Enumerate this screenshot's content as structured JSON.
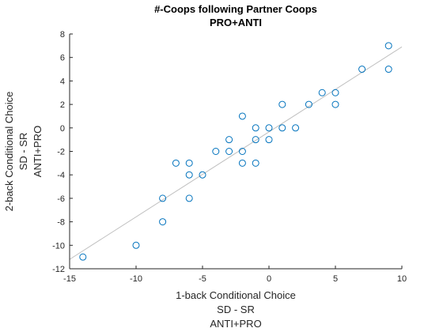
{
  "chart_data": {
    "type": "scatter",
    "title": [
      "#-Coops following Partner Coops",
      "PRO+ANTI"
    ],
    "xlabel": [
      "1-back Conditional Choice",
      "SD - SR",
      "ANTI+PRO"
    ],
    "ylabel": [
      "2-back Conditional Choice",
      "SD - SR",
      "ANTI+PRO"
    ],
    "xlim": [
      -15,
      10
    ],
    "ylim": [
      -12,
      8
    ],
    "xticks": [
      -15,
      -10,
      -5,
      0,
      5,
      10
    ],
    "yticks": [
      -12,
      -10,
      -8,
      -6,
      -4,
      -2,
      0,
      2,
      4,
      6,
      8
    ],
    "grid": false,
    "marker": "open-circle",
    "marker_color": "#0072BD",
    "fit_line_color": "#c0c0c0",
    "fit_line": [
      [
        -15,
        -11.2
      ],
      [
        10,
        6.9
      ]
    ],
    "points": [
      [
        -14,
        -11
      ],
      [
        -10,
        -10
      ],
      [
        -8,
        -8
      ],
      [
        -8,
        -6
      ],
      [
        -7,
        -3
      ],
      [
        -6,
        -3
      ],
      [
        -6,
        -4
      ],
      [
        -6,
        -6
      ],
      [
        -5,
        -4
      ],
      [
        -4,
        -2
      ],
      [
        -3,
        -1
      ],
      [
        -3,
        -2
      ],
      [
        -2,
        1
      ],
      [
        -2,
        -2
      ],
      [
        -2,
        -3
      ],
      [
        -1,
        0
      ],
      [
        -1,
        -1
      ],
      [
        -1,
        -3
      ],
      [
        0,
        0
      ],
      [
        0,
        -1
      ],
      [
        1,
        2
      ],
      [
        1,
        0
      ],
      [
        2,
        0
      ],
      [
        3,
        2
      ],
      [
        4,
        3
      ],
      [
        5,
        3
      ],
      [
        5,
        2
      ],
      [
        7,
        5
      ],
      [
        9,
        7
      ],
      [
        9,
        5
      ]
    ]
  }
}
